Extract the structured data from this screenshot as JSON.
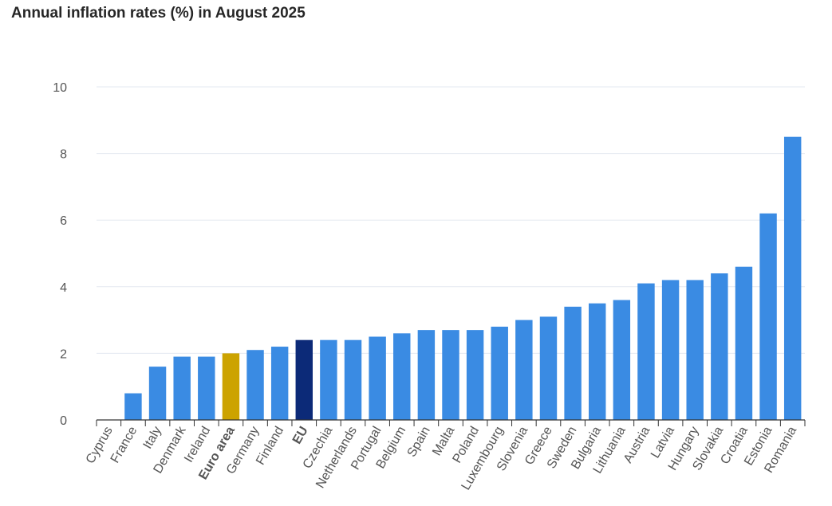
{
  "chart_data": {
    "type": "bar",
    "title": "Annual inflation rates (%) in August 2025",
    "xlabel": "",
    "ylabel": "",
    "ylim": [
      0,
      10
    ],
    "yticks": [
      0,
      2,
      4,
      6,
      8,
      10
    ],
    "grid": true,
    "legend": "none",
    "colors": {
      "default": "#3a8be3",
      "euro_area": "#cca300",
      "eu": "#0c2a78",
      "grid": "#e3e8f0",
      "axis": "#333333"
    },
    "categories": [
      "Cyprus",
      "France",
      "Italy",
      "Denmark",
      "Ireland",
      "Euro area",
      "Germany",
      "Finland",
      "EU",
      "Czechia",
      "Netherlands",
      "Portugal",
      "Belgium",
      "Spain",
      "Malta",
      "Poland",
      "Luxembourg",
      "Slovenia",
      "Greece",
      "Sweden",
      "Bulgaria",
      "Lithuania",
      "Austria",
      "Latvia",
      "Hungary",
      "Slovakia",
      "Croatia",
      "Estonia",
      "Romania"
    ],
    "values": [
      0.0,
      0.8,
      1.6,
      1.9,
      1.9,
      2.0,
      2.1,
      2.2,
      2.4,
      2.4,
      2.4,
      2.5,
      2.6,
      2.7,
      2.7,
      2.7,
      2.8,
      3.0,
      3.1,
      3.4,
      3.5,
      3.6,
      4.1,
      4.2,
      4.2,
      4.4,
      4.6,
      6.2,
      8.5
    ],
    "highlight": {
      "Euro area": "euro_area",
      "EU": "eu"
    },
    "bold_labels": [
      "Euro area",
      "EU"
    ]
  }
}
